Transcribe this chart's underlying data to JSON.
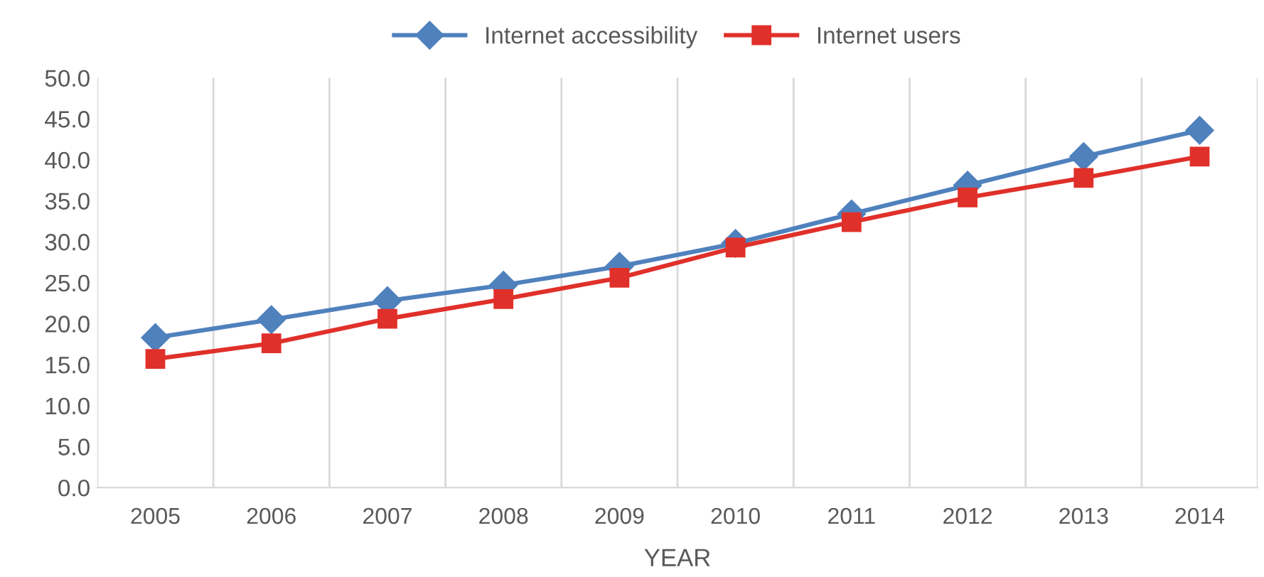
{
  "chart_data": {
    "type": "line",
    "xlabel": "YEAR",
    "categories": [
      "2005",
      "2006",
      "2007",
      "2008",
      "2009",
      "2010",
      "2011",
      "2012",
      "2013",
      "2014"
    ],
    "series": [
      {
        "name": "Internet accessibility",
        "color": "#4f81bd",
        "marker": "diamond",
        "values": [
          18.3,
          20.5,
          22.8,
          24.7,
          27.0,
          29.8,
          33.4,
          36.9,
          40.4,
          43.6
        ]
      },
      {
        "name": "Internet users",
        "color": "#e0302a",
        "marker": "square",
        "values": [
          15.7,
          17.6,
          20.6,
          23.0,
          25.6,
          29.3,
          32.4,
          35.4,
          37.8,
          40.4
        ]
      }
    ],
    "ylim": [
      0,
      50
    ],
    "yticks": [
      {
        "value": 0,
        "label": "0.0"
      },
      {
        "value": 5,
        "label": "5.0"
      },
      {
        "value": 10,
        "label": "10.0"
      },
      {
        "value": 15,
        "label": "15.0"
      },
      {
        "value": 20,
        "label": "20.0"
      },
      {
        "value": 25,
        "label": "25.0"
      },
      {
        "value": 30,
        "label": "30.0"
      },
      {
        "value": 35,
        "label": "35.0"
      },
      {
        "value": 40,
        "label": "40.0"
      },
      {
        "value": 45,
        "label": "45.0"
      },
      {
        "value": 50,
        "label": "50.0"
      }
    ],
    "grid": "x",
    "legend": "top",
    "line_style": "solid"
  }
}
